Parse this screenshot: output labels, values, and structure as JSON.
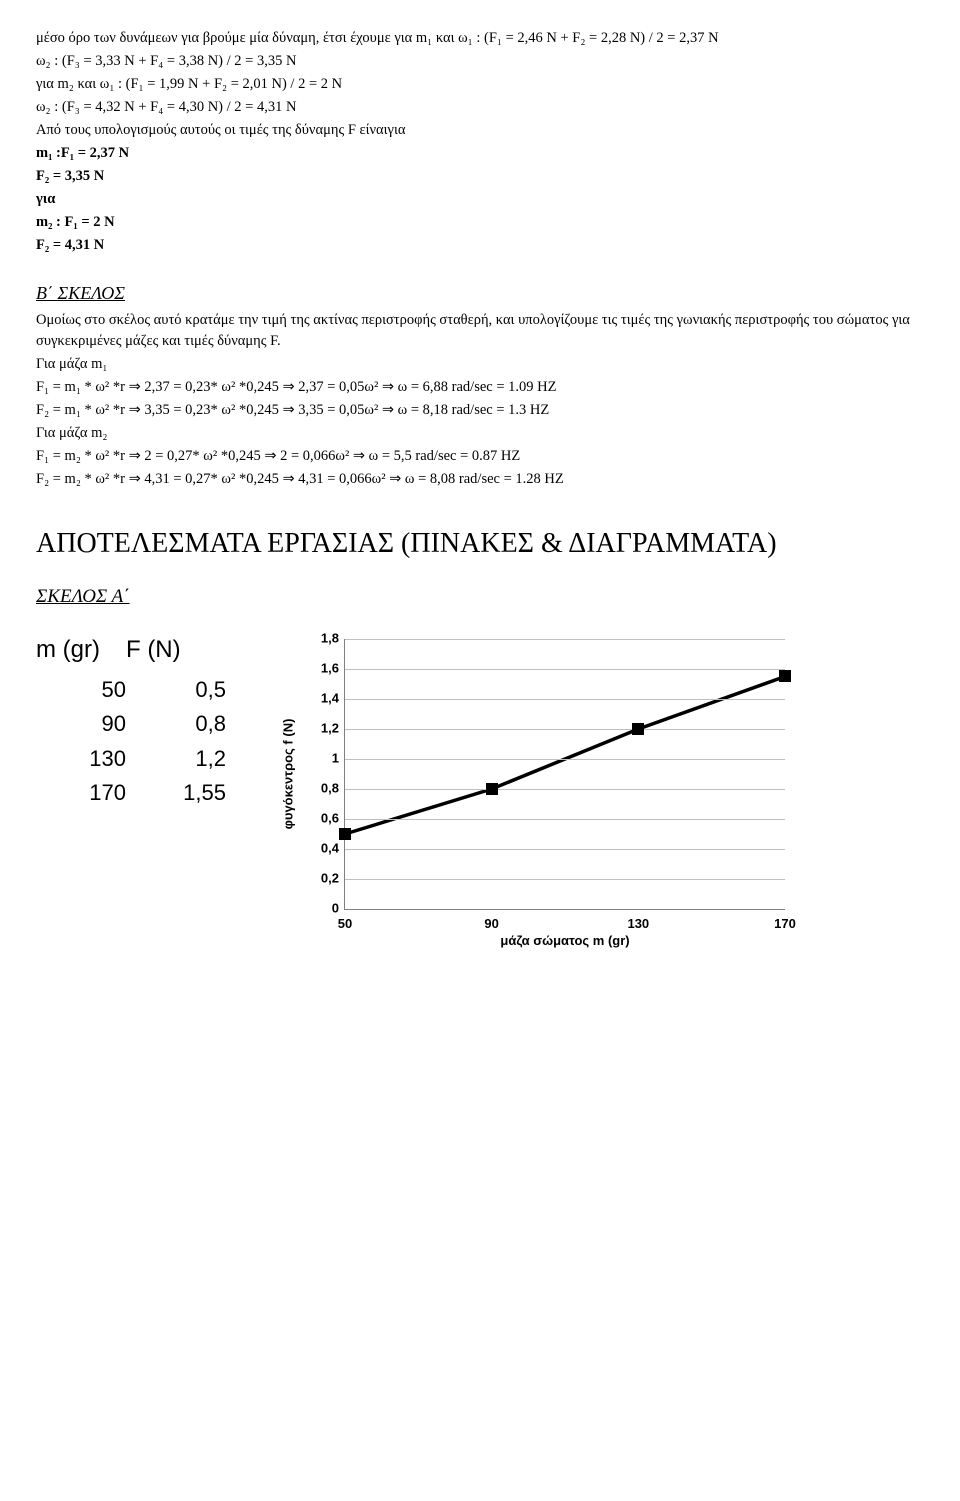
{
  "text": {
    "p1": "μέσο όρο των δυνάμεων για βρούμε μία δύναμη, έτσι έχουμε για  m₁ και ω₁ : (F₁ = 2,46 N + F₂ = 2,28 N) / 2 = 2,37 N",
    "p2": "ω₂ : (F₃ = 3,33 N + F₄ = 3,38 N) / 2 = 3,35 N",
    "p3": "για  m₂ και ω₁ : (F₁ = 1,99 N + F₂ = 2,01 N) / 2 = 2 N",
    "p4": "ω₂ : (F₃ = 4,32 N + F₄ = 4,30 N) / 2 = 4,31 N",
    "p5": "Από τους υπολογισμούς αυτούς οι τιμές της δύναμης F είναιγια",
    "p6": " m₁  :F₁ = 2,37 N",
    "p7": "F₂  = 3,35 N",
    "p8": "για",
    "p9": " m₂  : F₁ = 2 N",
    "p10": "F₂ = 4,31 N",
    "bSkelosTitle": "Β΄ ΣΚΕΛΟΣ",
    "b1": "Ομοίως στο σκέλος αυτό κρατάμε την τιμή της ακτίνας περιστροφής σταθερή, και υπολογίζουμε τις τιμές της γωνιακής περιστροφής του σώματος για συγκεκριμένες μάζες και τιμές δύναμης F.",
    "b2": "Για μάζα m₁",
    "b3": "F₁ = m₁ * ω² *r  ⇒  2,37 = 0,23* ω² *0,245  ⇒ 2,37 = 0,05ω²  ⇒ ω = 6,88 rad/sec = 1.09 HZ",
    "b4": "F₂ = m₁ * ω² *r  ⇒  3,35 = 0,23* ω² *0,245  ⇒ 3,35 = 0,05ω²  ⇒ ω = 8,18 rad/sec = 1.3 HZ",
    "b5": "Για μάζα m₂",
    "b6": "F₁ = m₂ * ω² *r  ⇒  2 = 0,27* ω² *0,245  ⇒ 2 = 0,066ω²  ⇒ ω = 5,5 rad/sec = 0.87 HZ",
    "b7": "F₂ = m₂ * ω² *r  ⇒  4,31 = 0,27* ω² *0,245  ⇒ 4,31 = 0,066ω²  ⇒ ω = 8,08 rad/sec = 1.28 HZ",
    "resultsTitle": "ΑΠΟΤΕΛΕΣΜΑΤΑ ΕΡΓΑΣΙΑΣ (ΠΙΝΑΚΕΣ & ΔΙΑΓΡΑΜΜΑΤΑ)",
    "skelosA": "ΣΚΕΛΟΣ Α΄"
  },
  "table": {
    "headers": [
      "m (gr)",
      "F (N)"
    ],
    "rows": [
      [
        "50",
        "0,5"
      ],
      [
        "90",
        "0,8"
      ],
      [
        "130",
        "1,2"
      ],
      [
        "170",
        "1,55"
      ]
    ]
  },
  "chart": {
    "type": "line",
    "x_values": [
      50,
      90,
      130,
      170
    ],
    "y_values": [
      0.5,
      0.8,
      1.2,
      1.55
    ],
    "xlim": [
      50,
      170
    ],
    "ylim": [
      0,
      1.8
    ],
    "yticks": [
      0,
      0.2,
      0.4,
      0.6,
      0.8,
      1,
      1.2,
      1.4,
      1.6,
      1.8
    ],
    "ytick_labels": [
      "0",
      "0,2",
      "0,4",
      "0,6",
      "0,8",
      "1",
      "1,2",
      "1,4",
      "1,6",
      "1,8"
    ],
    "xtick_labels": [
      "50",
      "90",
      "130",
      "170"
    ],
    "xlabel": "μάζα σώματος m (gr)",
    "ylabel": "φυγόκεντρος f (N)",
    "line_color": "#000000",
    "line_width": 3.5,
    "marker_color": "#000000",
    "marker_size": 12,
    "grid_color": "#c0c0c0",
    "background_color": "#ffffff",
    "label_fontsize": 13
  }
}
